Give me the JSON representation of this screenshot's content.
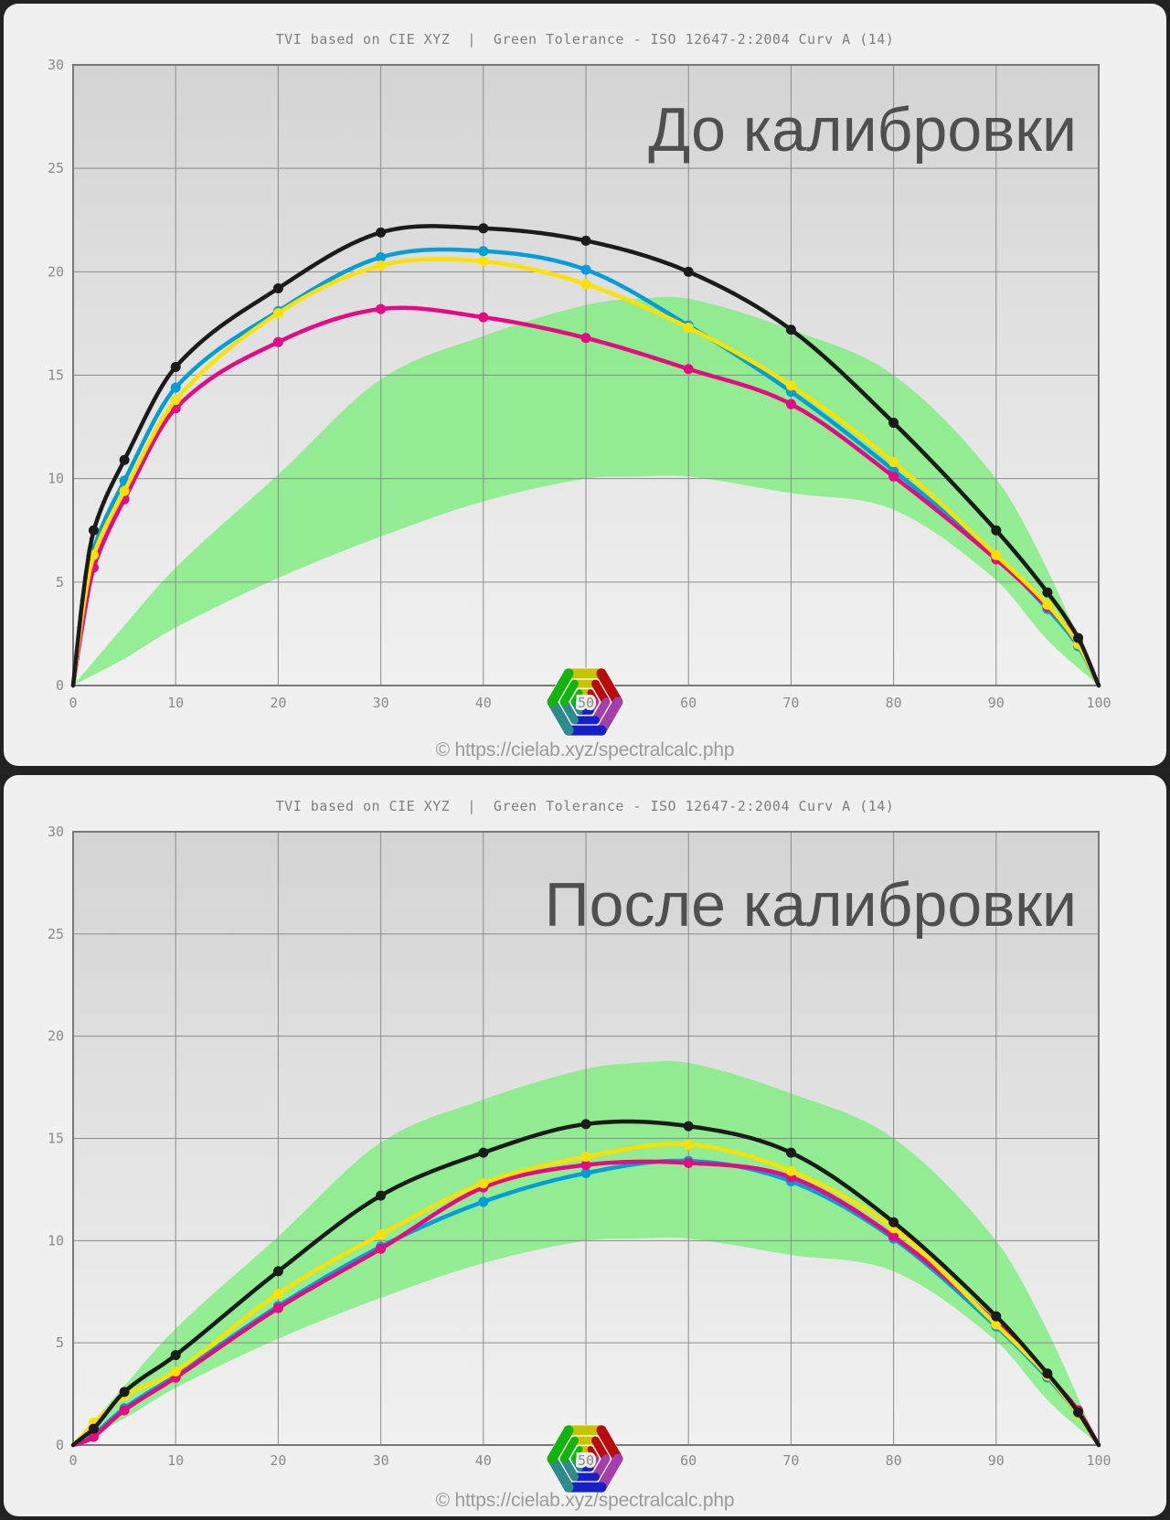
{
  "page": {
    "background": "#222222"
  },
  "copyright": "© https://cielab.xyz/spectralcalc.php",
  "logo": {
    "name": "cielab-hexagon-logo",
    "segment_colors": [
      "#c9c400",
      "#bb0a0a",
      "#a23fa8",
      "#1620c4",
      "#2e8b8b",
      "#15b40c"
    ],
    "base_color": "#ffffff"
  },
  "style_colors": {
    "plot_bg_top": "#d4d4d4",
    "plot_bg_bottom": "#f1f1f1",
    "grid": "#8b8b8b",
    "border": "#787878",
    "tick_text": "#8a8a8a",
    "halo": "#ededed"
  },
  "chart_data": [
    {
      "type": "line",
      "title": "TVI based on CIE XYZ  |  Green Tolerance - ISO 12647-2:2004 Curv A (14)",
      "watermark": "До калибровки",
      "xlabel": "",
      "ylabel": "",
      "xlim": [
        0,
        100
      ],
      "ylim": [
        0,
        30
      ],
      "xticks": [
        0,
        10,
        20,
        30,
        40,
        50,
        60,
        70,
        80,
        90,
        100
      ],
      "yticks": [
        0,
        5,
        10,
        15,
        20,
        25,
        30
      ],
      "grid": true,
      "legend": "none",
      "x": [
        0,
        1,
        2,
        5,
        10,
        20,
        30,
        40,
        50,
        60,
        70,
        80,
        90,
        95,
        98,
        100
      ],
      "series": [
        {
          "name": "cyan",
          "color": "#009ed8",
          "values": [
            0,
            4.0,
            6.6,
            9.9,
            14.4,
            18.1,
            20.7,
            21.0,
            20.1,
            17.4,
            14.2,
            10.4,
            6.2,
            3.7,
            1.9,
            0
          ]
        },
        {
          "name": "magenta",
          "color": "#e60984",
          "values": [
            0,
            3.2,
            5.7,
            9.0,
            13.4,
            16.6,
            18.2,
            17.8,
            16.8,
            15.3,
            13.6,
            10.1,
            6.1,
            3.8,
            2.1,
            0
          ]
        },
        {
          "name": "yellow",
          "color": "#ffe100",
          "values": [
            0,
            3.8,
            6.3,
            9.4,
            13.8,
            18.0,
            20.3,
            20.5,
            19.4,
            17.3,
            14.5,
            10.8,
            6.3,
            3.9,
            2.0,
            0
          ]
        },
        {
          "name": "black",
          "color": "#1b1b1b",
          "values": [
            0,
            4.5,
            7.5,
            10.9,
            15.4,
            19.2,
            21.9,
            22.1,
            21.5,
            20.0,
            17.2,
            12.7,
            7.5,
            4.5,
            2.3,
            0
          ]
        }
      ],
      "marker_x": [
        2,
        5,
        10,
        20,
        30,
        40,
        50,
        60,
        70,
        80,
        90,
        95,
        98
      ],
      "trail_x": [
        0.3,
        0.6,
        0.9,
        1.2,
        1.5,
        1.8,
        2.4,
        2.7,
        3.0,
        3.4
      ],
      "tolerance_band": {
        "name": "green-tolerance-band",
        "color": "#7dee7d",
        "x": [
          0,
          5,
          10,
          20,
          30,
          40,
          50,
          55,
          60,
          70,
          80,
          90,
          95,
          100
        ],
        "upper": [
          0,
          2.9,
          5.7,
          10.2,
          14.8,
          16.9,
          18.4,
          18.7,
          18.7,
          17.2,
          15.0,
          10.0,
          5.6,
          0
        ],
        "lower": [
          0,
          1.3,
          2.8,
          5.2,
          7.2,
          8.9,
          10.0,
          10.1,
          10.1,
          9.3,
          8.5,
          5.1,
          2.2,
          0
        ]
      }
    },
    {
      "type": "line",
      "title": "TVI based on CIE XYZ  |  Green Tolerance - ISO 12647-2:2004 Curv A (14)",
      "watermark": "После калибровки",
      "xlabel": "",
      "ylabel": "",
      "xlim": [
        0,
        100
      ],
      "ylim": [
        0,
        30
      ],
      "xticks": [
        0,
        10,
        20,
        30,
        40,
        50,
        60,
        70,
        80,
        90,
        100
      ],
      "yticks": [
        0,
        5,
        10,
        15,
        20,
        25,
        30
      ],
      "grid": true,
      "legend": "none",
      "x": [
        0,
        1,
        2,
        5,
        10,
        20,
        30,
        40,
        50,
        60,
        70,
        80,
        90,
        95,
        98,
        100
      ],
      "series": [
        {
          "name": "cyan",
          "color": "#009ed8",
          "values": [
            0,
            0.2,
            0.5,
            1.8,
            3.4,
            6.8,
            9.7,
            11.9,
            13.3,
            13.9,
            12.9,
            10.1,
            5.8,
            3.3,
            1.5,
            0
          ]
        },
        {
          "name": "magenta",
          "color": "#e60984",
          "values": [
            0,
            0.15,
            0.4,
            1.7,
            3.3,
            6.7,
            9.6,
            12.6,
            13.7,
            13.8,
            13.1,
            10.2,
            6.0,
            3.4,
            1.7,
            0
          ]
        },
        {
          "name": "yellow",
          "color": "#ffe100",
          "values": [
            0,
            0.5,
            1.1,
            2.4,
            3.6,
            7.4,
            10.3,
            12.8,
            14.1,
            14.7,
            13.4,
            10.6,
            5.9,
            3.4,
            1.5,
            0
          ]
        },
        {
          "name": "black",
          "color": "#1b1b1b",
          "values": [
            0,
            0.4,
            0.8,
            2.6,
            4.4,
            8.5,
            12.2,
            14.3,
            15.7,
            15.6,
            14.3,
            10.9,
            6.3,
            3.5,
            1.6,
            0
          ]
        }
      ],
      "marker_x": [
        2,
        5,
        10,
        20,
        30,
        40,
        50,
        60,
        70,
        80,
        90,
        95,
        98
      ],
      "trail_x": [
        0.3,
        0.6,
        0.9,
        1.2,
        1.5,
        1.8,
        2.4,
        2.7,
        3.0,
        3.4
      ],
      "tolerance_band": {
        "name": "green-tolerance-band",
        "color": "#7dee7d",
        "x": [
          0,
          5,
          10,
          20,
          30,
          40,
          50,
          55,
          60,
          70,
          80,
          90,
          95,
          100
        ],
        "upper": [
          0,
          2.9,
          5.7,
          10.2,
          14.8,
          16.9,
          18.4,
          18.7,
          18.7,
          17.2,
          15.0,
          10.0,
          5.6,
          0
        ],
        "lower": [
          0,
          1.3,
          2.8,
          5.2,
          7.2,
          8.9,
          10.0,
          10.1,
          10.1,
          9.3,
          8.5,
          5.1,
          2.2,
          0
        ]
      }
    }
  ]
}
